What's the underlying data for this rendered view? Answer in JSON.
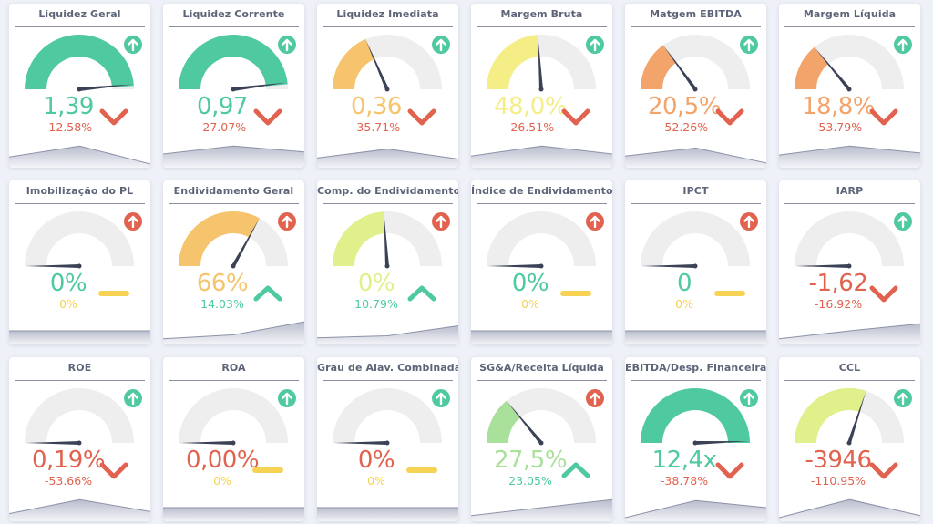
{
  "colors": {
    "green": "#4fc9a0",
    "red": "#e0624f",
    "orange": "#f2a46b",
    "amber": "#f5c46c",
    "yellow": "#f5ee86",
    "lime": "#e2f08c",
    "lightgreen": "#a9e09a",
    "dash": "#f6d255",
    "track": "#eeeeee",
    "needle": "#3b4256"
  },
  "cards": [
    {
      "title": "Liquidez Geral",
      "value": "1,39",
      "change": "-12.58%",
      "gauge_fill": 0.98,
      "needle": 0.97,
      "fill_color": "green",
      "value_color": "green",
      "change_color": "red",
      "target_icon": "arrow-up-circle-icon",
      "target_color": "green",
      "trend": "down",
      "trend_color": "red",
      "sparkline": [
        0.35,
        0.9,
        0.0
      ]
    },
    {
      "title": "Liquidez Corrente",
      "value": "0,97",
      "change": "-27.07%",
      "gauge_fill": 0.97,
      "needle": 0.96,
      "fill_color": "green",
      "value_color": "green",
      "change_color": "red",
      "target_icon": "arrow-up-circle-icon",
      "target_color": "green",
      "trend": "down",
      "trend_color": "red",
      "sparkline": [
        0.5,
        0.9,
        0.6
      ]
    },
    {
      "title": "Liquidez Imediata",
      "value": "0,36",
      "change": "-35.71%",
      "gauge_fill": 0.37,
      "needle": 0.37,
      "fill_color": "amber",
      "value_color": "amber",
      "change_color": "red",
      "target_icon": "arrow-up-circle-icon",
      "target_color": "green",
      "trend": "down",
      "trend_color": "red",
      "sparkline": [
        0.3,
        0.75,
        0.25
      ]
    },
    {
      "title": "Margem Bruta",
      "value": "48,0%",
      "change": "-26.51%",
      "gauge_fill": 0.48,
      "needle": 0.48,
      "fill_color": "yellow",
      "value_color": "yellow",
      "change_color": "red",
      "target_icon": "arrow-up-circle-icon",
      "target_color": "green",
      "trend": "down",
      "trend_color": "red",
      "sparkline": [
        0.4,
        0.9,
        0.5
      ]
    },
    {
      "title": "Matgem EBITDA",
      "value": "20,5%",
      "change": "-52.26%",
      "gauge_fill": 0.3,
      "needle": 0.3,
      "fill_color": "orange",
      "value_color": "orange",
      "change_color": "red",
      "target_icon": "arrow-up-circle-icon",
      "target_color": "green",
      "trend": "down",
      "trend_color": "red",
      "sparkline": [
        0.4,
        0.8,
        0.05
      ]
    },
    {
      "title": "Margem Líquida",
      "value": "18,8%",
      "change": "-53.79%",
      "gauge_fill": 0.28,
      "needle": 0.28,
      "fill_color": "orange",
      "value_color": "orange",
      "change_color": "red",
      "target_icon": "arrow-up-circle-icon",
      "target_color": "green",
      "trend": "down",
      "trend_color": "red",
      "sparkline": [
        0.45,
        0.9,
        0.55
      ]
    },
    {
      "title": "Imobilização do PL",
      "value": "0%",
      "change": "0%",
      "gauge_fill": 0,
      "needle": 0,
      "fill_color": "green",
      "value_color": "green",
      "change_color": "dash",
      "target_icon": "arrow-up-circle-icon",
      "target_color": "red",
      "trend": "flat",
      "trend_color": "dash",
      "sparkline": [
        0.5,
        0.5,
        0.5
      ]
    },
    {
      "title": "Endividamento Geral",
      "value": "66%",
      "change": "14.03%",
      "gauge_fill": 0.66,
      "needle": 0.66,
      "fill_color": "amber",
      "value_color": "amber",
      "change_color": "green",
      "target_icon": "arrow-up-circle-icon",
      "target_color": "red",
      "trend": "up",
      "trend_color": "green",
      "sparkline": [
        0.1,
        0.3,
        0.95
      ]
    },
    {
      "title": "Comp. do Endividamento",
      "value": "0%",
      "change": "10.79%",
      "gauge_fill": 0.48,
      "needle": 0.48,
      "fill_color": "lime",
      "value_color": "lime",
      "change_color": "green",
      "target_icon": "arrow-up-circle-icon",
      "target_color": "red",
      "trend": "up",
      "trend_color": "green",
      "sparkline": [
        0.15,
        0.25,
        0.75
      ]
    },
    {
      "title": "Índice de Endividamento",
      "value": "0%",
      "change": "0%",
      "gauge_fill": 0,
      "needle": 0,
      "fill_color": "green",
      "value_color": "green",
      "change_color": "dash",
      "target_icon": "arrow-up-circle-icon",
      "target_color": "red",
      "trend": "flat",
      "trend_color": "dash",
      "sparkline": [
        0.5,
        0.5,
        0.5
      ]
    },
    {
      "title": "IPCT",
      "value": "0",
      "change": "0%",
      "gauge_fill": 0,
      "needle": 0,
      "fill_color": "green",
      "value_color": "green",
      "change_color": "dash",
      "target_icon": "arrow-up-circle-icon",
      "target_color": "red",
      "trend": "flat",
      "trend_color": "dash",
      "sparkline": [
        0.5,
        0.5,
        0.5
      ]
    },
    {
      "title": "IARP",
      "value": "-1,62",
      "change": "-16.92%",
      "gauge_fill": 0,
      "needle": 0,
      "fill_color": "red",
      "value_color": "red",
      "change_color": "red",
      "target_icon": "arrow-up-circle-icon",
      "target_color": "green",
      "trend": "down",
      "trend_color": "red",
      "sparkline": [
        0.1,
        0.5,
        0.85
      ]
    },
    {
      "title": "ROE",
      "value": "0,19%",
      "change": "-53.66%",
      "gauge_fill": 0,
      "needle": 0,
      "fill_color": "red",
      "value_color": "red",
      "change_color": "red",
      "target_icon": "arrow-up-circle-icon",
      "target_color": "green",
      "trend": "down",
      "trend_color": "red",
      "sparkline": [
        0.2,
        0.9,
        0.3
      ]
    },
    {
      "title": "ROA",
      "value": "0,00%",
      "change": "0%",
      "gauge_fill": 0,
      "needle": 0,
      "fill_color": "red",
      "value_color": "red",
      "change_color": "dash",
      "target_icon": "arrow-up-circle-icon",
      "target_color": "green",
      "trend": "flat",
      "trend_color": "dash",
      "sparkline": [
        0.5,
        0.5,
        0.5
      ]
    },
    {
      "title": "Grau de Alav. Combinada",
      "value": "0%",
      "change": "0%",
      "gauge_fill": 0,
      "needle": 0,
      "fill_color": "red",
      "value_color": "red",
      "change_color": "dash",
      "target_icon": "arrow-up-circle-icon",
      "target_color": "green",
      "trend": "flat",
      "trend_color": "dash",
      "sparkline": [
        0.5,
        0.5,
        0.5
      ]
    },
    {
      "title": "SG&A/Receita Líquida",
      "value": "27,5%",
      "change": "23.05%",
      "gauge_fill": 0.28,
      "needle": 0.28,
      "fill_color": "lightgreen",
      "value_color": "lightgreen",
      "change_color": "green",
      "target_icon": "arrow-up-circle-icon",
      "target_color": "red",
      "trend": "up",
      "trend_color": "green",
      "sparkline": [
        0.1,
        0.5,
        0.9
      ]
    },
    {
      "title": "EBITDA/Desp. Financeira",
      "value": "12,4x",
      "change": "-38.78%",
      "gauge_fill": 1.0,
      "needle": 0.99,
      "fill_color": "green",
      "value_color": "green",
      "change_color": "red",
      "target_icon": "arrow-up-circle-icon",
      "target_color": "green",
      "trend": "down",
      "trend_color": "red",
      "sparkline": [
        0.0,
        0.85,
        0.5
      ]
    },
    {
      "title": "CCL",
      "value": "-3946",
      "change": "-110.95%",
      "gauge_fill": 0.6,
      "needle": 0.6,
      "fill_color": "lime",
      "value_color": "red",
      "change_color": "red",
      "target_icon": "arrow-up-circle-icon",
      "target_color": "green",
      "trend": "down",
      "trend_color": "red",
      "sparkline": [
        0.0,
        0.9,
        0.1
      ]
    }
  ]
}
